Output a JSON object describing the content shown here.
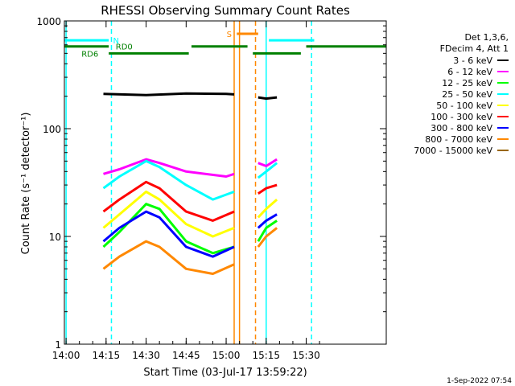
{
  "chart_data": {
    "type": "line",
    "title": "RHESSI Observing Summary Count Rates",
    "xlabel": "Start Time (03-Jul-17 13:59:22)",
    "ylabel": "Count Rate (s⁻¹ detector⁻¹)",
    "y_scale": "log",
    "ylim": [
      1,
      1000
    ],
    "xlim": [
      "13:59:22",
      "16:00"
    ],
    "x_ticks": [
      "14:00",
      "14:15",
      "14:30",
      "14:45",
      "15:00",
      "15:15",
      "15:30"
    ],
    "y_ticks": [
      "1",
      "10",
      "100",
      "1000"
    ],
    "grid": false,
    "legend_position": "top-right",
    "legend_header": [
      "Det 1,3,6,",
      "FDecim 4, Att 1"
    ],
    "timestamp": "1-Sep-2022 07:54",
    "series": [
      {
        "name": "3 - 6 keV",
        "color": "#000000",
        "segments": [
          {
            "x": [
              "14:14",
              "14:30",
              "14:45",
              "15:00",
              "15:03"
            ],
            "y": [
              210,
              205,
              212,
              210,
              208
            ]
          },
          {
            "x": [
              "15:12",
              "15:15",
              "15:19"
            ],
            "y": [
              195,
              190,
              195
            ]
          }
        ]
      },
      {
        "name": "6 - 12 keV",
        "color": "#ff00ff",
        "segments": [
          {
            "x": [
              "14:14",
              "14:20",
              "14:30",
              "14:35",
              "14:45",
              "15:00",
              "15:03"
            ],
            "y": [
              38,
              42,
              52,
              48,
              40,
              36,
              38
            ]
          },
          {
            "x": [
              "15:12",
              "15:15",
              "15:19"
            ],
            "y": [
              48,
              45,
              52
            ]
          }
        ]
      },
      {
        "name": "12 - 25 keV",
        "color": "#00ff00",
        "segments": [
          {
            "x": [
              "14:14",
              "14:20",
              "14:30",
              "14:35",
              "14:45",
              "14:55",
              "15:03"
            ],
            "y": [
              8,
              11,
              20,
              18,
              9,
              7,
              8
            ]
          },
          {
            "x": [
              "15:12",
              "15:15",
              "15:19"
            ],
            "y": [
              9,
              12,
              14
            ]
          }
        ]
      },
      {
        "name": "25 - 50 keV",
        "color": "#00ffff",
        "segments": [
          {
            "x": [
              "14:14",
              "14:20",
              "14:30",
              "14:35",
              "14:45",
              "14:55",
              "15:03"
            ],
            "y": [
              28,
              36,
              50,
              44,
              30,
              22,
              26
            ]
          },
          {
            "x": [
              "15:12",
              "15:15",
              "15:19"
            ],
            "y": [
              35,
              40,
              48
            ]
          }
        ]
      },
      {
        "name": "50 - 100 keV",
        "color": "#ffff00",
        "segments": [
          {
            "x": [
              "14:14",
              "14:20",
              "14:30",
              "14:35",
              "14:45",
              "14:55",
              "15:03"
            ],
            "y": [
              12,
              16,
              26,
              22,
              13,
              10,
              12
            ]
          },
          {
            "x": [
              "15:12",
              "15:15",
              "15:19"
            ],
            "y": [
              15,
              18,
              22
            ]
          }
        ]
      },
      {
        "name": "100 - 300 keV",
        "color": "#ff0000",
        "segments": [
          {
            "x": [
              "14:14",
              "14:20",
              "14:30",
              "14:35",
              "14:45",
              "14:55",
              "15:03"
            ],
            "y": [
              17,
              22,
              32,
              28,
              17,
              14,
              17
            ]
          },
          {
            "x": [
              "15:12",
              "15:15",
              "15:19"
            ],
            "y": [
              25,
              28,
              30
            ]
          }
        ]
      },
      {
        "name": "300 - 800 keV",
        "color": "#0000ff",
        "segments": [
          {
            "x": [
              "14:14",
              "14:20",
              "14:30",
              "14:35",
              "14:45",
              "14:55",
              "15:03"
            ],
            "y": [
              9,
              12,
              17,
              15,
              8,
              6.5,
              8
            ]
          },
          {
            "x": [
              "15:12",
              "15:15",
              "15:19"
            ],
            "y": [
              12,
              14,
              16
            ]
          }
        ]
      },
      {
        "name": "800 - 7000 keV",
        "color": "#ff8800",
        "segments": [
          {
            "x": [
              "14:14",
              "14:20",
              "14:30",
              "14:35",
              "14:45",
              "14:55",
              "15:03"
            ],
            "y": [
              5,
              6.5,
              9,
              8,
              5,
              4.5,
              5.5
            ]
          },
          {
            "x": [
              "15:12",
              "15:15",
              "15:19"
            ],
            "y": [
              8,
              10,
              12
            ]
          }
        ]
      },
      {
        "name": "7000 - 15000 keV",
        "color": "#996600",
        "segments": []
      }
    ],
    "flags": [
      {
        "label": "N",
        "color": "#00ffff",
        "y": 660,
        "segments": [
          [
            "13:59:22",
            "14:16"
          ],
          [
            "15:16",
            "15:33"
          ]
        ]
      },
      {
        "label": "RD0",
        "color": "#008000",
        "y": 580,
        "segments": [
          [
            "13:59:22",
            "14:16"
          ],
          [
            "14:47",
            "15:08"
          ],
          [
            "15:30",
            "16:00"
          ]
        ]
      },
      {
        "label": "RD6",
        "color": "#008000",
        "y": 500,
        "segments": [
          [
            "14:16",
            "14:46"
          ],
          [
            "15:10",
            "15:28"
          ]
        ]
      },
      {
        "label": "S",
        "color": "#ff8800",
        "y": 760,
        "segments": [
          [
            "15:04",
            "15:12"
          ]
        ]
      }
    ],
    "vlines": [
      {
        "x": "14:00",
        "color": "#00ffff",
        "style": "solid"
      },
      {
        "x": "14:17",
        "color": "#00ffff",
        "style": "dashed"
      },
      {
        "x": "15:03",
        "color": "#ff8800",
        "style": "solid"
      },
      {
        "x": "15:05",
        "color": "#ff8800",
        "style": "solid"
      },
      {
        "x": "15:11",
        "color": "#ff8800",
        "style": "dashed"
      },
      {
        "x": "15:15",
        "color": "#00ffff",
        "style": "solid"
      },
      {
        "x": "15:32",
        "color": "#00ffff",
        "style": "dashed"
      }
    ]
  }
}
